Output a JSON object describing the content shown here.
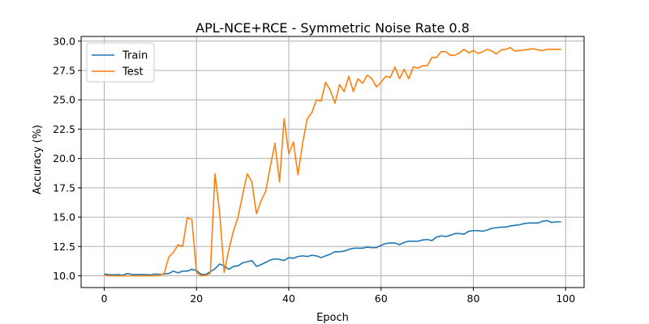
{
  "chart_data": {
    "type": "line",
    "title": "APL-NCE+RCE - Symmetric Noise Rate 0.8",
    "xlabel": "Epoch",
    "ylabel": "Accuracy (%)",
    "xlim": [
      -5,
      104
    ],
    "ylim": [
      9.0,
      30.4
    ],
    "xticks": [
      0,
      20,
      40,
      60,
      80,
      100
    ],
    "yticks": [
      10.0,
      12.5,
      15.0,
      17.5,
      20.0,
      22.5,
      25.0,
      27.5,
      30.0
    ],
    "grid": true,
    "legend_position": "top-left",
    "series": [
      {
        "name": "Train",
        "color": "#1f77b4",
        "values": [
          10.15,
          10.1,
          10.08,
          10.1,
          10.05,
          10.2,
          10.12,
          10.1,
          10.12,
          10.1,
          10.08,
          10.15,
          10.12,
          10.15,
          10.2,
          10.4,
          10.25,
          10.4,
          10.4,
          10.55,
          10.45,
          10.12,
          10.12,
          10.35,
          10.6,
          11.0,
          10.85,
          10.55,
          10.8,
          10.85,
          11.1,
          11.2,
          11.3,
          10.8,
          10.95,
          11.15,
          11.35,
          11.45,
          11.4,
          11.3,
          11.55,
          11.5,
          11.65,
          11.7,
          11.65,
          11.75,
          11.7,
          11.55,
          11.7,
          11.85,
          12.05,
          12.05,
          12.1,
          12.25,
          12.35,
          12.35,
          12.35,
          12.45,
          12.4,
          12.4,
          12.6,
          12.75,
          12.8,
          12.8,
          12.65,
          12.85,
          12.95,
          12.95,
          12.95,
          13.05,
          13.1,
          13.0,
          13.3,
          13.4,
          13.35,
          13.45,
          13.6,
          13.6,
          13.55,
          13.8,
          13.85,
          13.85,
          13.8,
          13.9,
          14.05,
          14.1,
          14.15,
          14.15,
          14.25,
          14.3,
          14.35,
          14.45,
          14.5,
          14.5,
          14.5,
          14.65,
          14.7,
          14.55,
          14.6,
          14.6
        ]
      },
      {
        "name": "Test",
        "color": "#ff7f0e",
        "values": [
          10.05,
          10.0,
          10.0,
          10.0,
          10.0,
          10.0,
          10.0,
          10.0,
          10.0,
          10.0,
          10.0,
          10.0,
          10.05,
          10.2,
          11.6,
          12.0,
          12.65,
          12.5,
          14.95,
          14.8,
          10.3,
          10.0,
          10.05,
          10.2,
          18.7,
          15.5,
          10.3,
          12.2,
          13.8,
          15.0,
          16.9,
          18.7,
          18.0,
          15.3,
          16.4,
          17.2,
          19.3,
          21.3,
          18.0,
          23.4,
          20.4,
          21.4,
          18.6,
          21.3,
          23.4,
          23.9,
          25.0,
          24.9,
          26.5,
          25.8,
          24.7,
          26.3,
          25.7,
          27.0,
          25.7,
          26.8,
          26.4,
          27.1,
          26.8,
          26.1,
          26.5,
          27.0,
          26.9,
          27.8,
          26.8,
          27.6,
          26.8,
          27.8,
          27.7,
          27.9,
          27.9,
          28.6,
          28.6,
          29.1,
          29.1,
          28.8,
          28.8,
          29.0,
          29.3,
          29.0,
          29.2,
          28.95,
          29.1,
          29.3,
          29.15,
          28.9,
          29.25,
          29.3,
          29.45,
          29.15,
          29.2,
          29.25,
          29.3,
          29.35,
          29.25,
          29.2,
          29.3,
          29.3,
          29.3,
          29.3
        ]
      }
    ]
  }
}
